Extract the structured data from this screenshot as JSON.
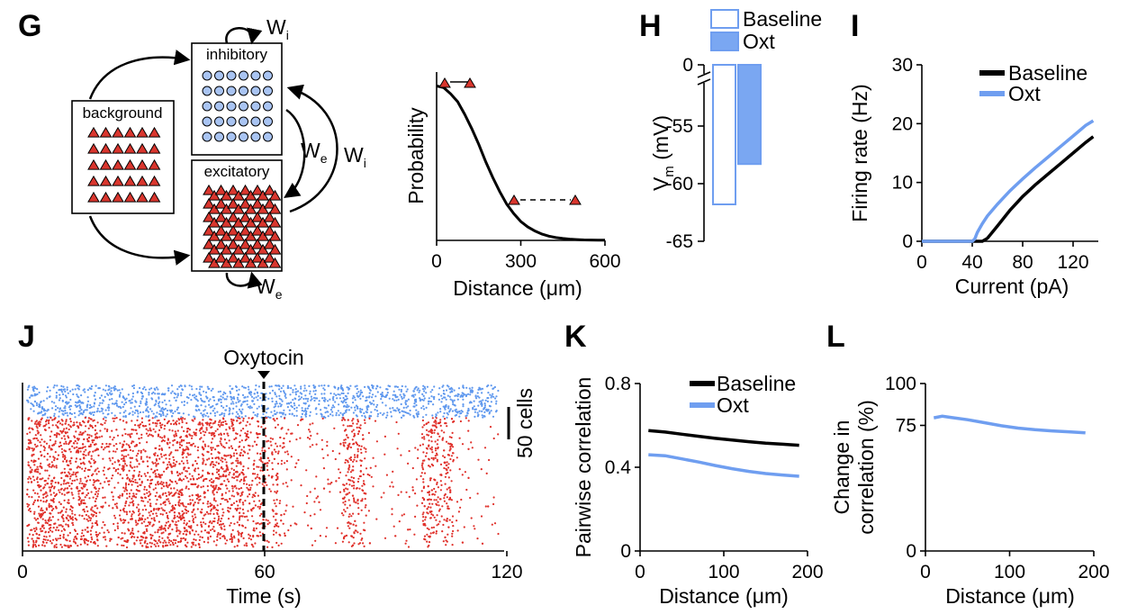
{
  "panel_labels": {
    "G": "G",
    "H": "H",
    "I": "I",
    "J": "J",
    "K": "K",
    "L": "L"
  },
  "colors": {
    "baseline": "#000000",
    "oxt": "#6f9ef0",
    "oxt_fill": "#7aa7f2",
    "inhibitory_cell": "#a9c4f2",
    "excitatory_cell": "#d9362e",
    "raster_inh": "#5f98ee",
    "raster_exc": "#e0302a"
  },
  "network": {
    "background_label": "background",
    "inhibitory_label": "inhibitory",
    "excitatory_label": "excitatory",
    "w_i": "W",
    "w_i_sub": "i",
    "w_e": "W",
    "w_e_sub": "e"
  },
  "chart_data": [
    {
      "id": "G-connectivity",
      "type": "line",
      "ylabel": "Probability",
      "xlabel": "Distance (μm)",
      "xticks": [
        "0",
        "300",
        "600"
      ],
      "xlim": [
        0,
        600
      ],
      "ylim": [
        0,
        1
      ],
      "x": [
        0,
        25,
        50,
        75,
        100,
        125,
        150,
        175,
        200,
        225,
        250,
        275,
        300,
        325,
        350,
        375,
        400,
        425,
        450,
        475,
        500,
        525,
        550,
        575,
        600
      ],
      "values": [
        0.98,
        0.97,
        0.93,
        0.88,
        0.8,
        0.71,
        0.61,
        0.5,
        0.4,
        0.31,
        0.23,
        0.17,
        0.12,
        0.085,
        0.06,
        0.04,
        0.027,
        0.018,
        0.012,
        0.008,
        0.005,
        0.003,
        0.002,
        0.001,
        0.001
      ]
    },
    {
      "id": "H-vm",
      "type": "bar",
      "ylabel": "V",
      "ylabel_sub": "m",
      "ylabel_unit": " (mV)",
      "yticks": [
        "0",
        "-55",
        "-60",
        "-65"
      ],
      "legend": [
        "Baseline",
        "Oxt"
      ],
      "series": [
        {
          "name": "Baseline",
          "values": [
            -61.8
          ]
        },
        {
          "name": "Oxt",
          "values": [
            -58.3
          ]
        }
      ]
    },
    {
      "id": "I-fi",
      "type": "line",
      "ylabel": "Firing rate (Hz)",
      "xlabel": "Current (pA)",
      "xticks": [
        "0",
        "40",
        "80",
        "120"
      ],
      "yticks": [
        "0",
        "10",
        "20",
        "30"
      ],
      "xlim": [
        0,
        140
      ],
      "ylim": [
        0,
        30
      ],
      "legend": [
        "Baseline",
        "Oxt"
      ],
      "x": [
        0,
        10,
        20,
        30,
        40,
        42,
        44,
        48,
        52,
        60,
        70,
        80,
        90,
        100,
        110,
        120,
        130,
        136
      ],
      "series": [
        {
          "name": "Baseline",
          "values": [
            0,
            0,
            0,
            0,
            0,
            0,
            0,
            0,
            0.5,
            2.6,
            5.3,
            7.6,
            9.6,
            11.4,
            13.2,
            15,
            16.8,
            17.8
          ]
        },
        {
          "name": "Oxt",
          "values": [
            0,
            0,
            0,
            0,
            0,
            0.4,
            1.5,
            3,
            4.3,
            6.3,
            8.6,
            10.6,
            12.5,
            14.3,
            16.1,
            17.9,
            19.7,
            20.5
          ]
        }
      ]
    },
    {
      "id": "J-raster",
      "type": "scatter",
      "annotation": "Oxytocin",
      "xlabel": "Time (s)",
      "xticks": [
        "0",
        "60",
        "120"
      ],
      "xlim": [
        0,
        120
      ],
      "scalebar": "50 cells",
      "event_time": 60,
      "inhibitory_rows": [
        0,
        30
      ],
      "excitatory_rows": [
        30,
        150
      ]
    },
    {
      "id": "K-corr",
      "type": "line",
      "ylabel": "Pairwise correlation",
      "xlabel": "Distance (μm)",
      "xticks": [
        "0",
        "100",
        "200"
      ],
      "yticks": [
        "0",
        "0.4",
        "0.8"
      ],
      "xlim": [
        0,
        200
      ],
      "ylim": [
        0,
        0.8
      ],
      "legend": [
        "Baseline",
        "Oxt"
      ],
      "x": [
        10,
        30,
        50,
        70,
        90,
        110,
        130,
        150,
        170,
        190
      ],
      "series": [
        {
          "name": "Baseline",
          "values": [
            0.575,
            0.568,
            0.558,
            0.548,
            0.538,
            0.53,
            0.522,
            0.515,
            0.51,
            0.505
          ]
        },
        {
          "name": "Oxt",
          "values": [
            0.46,
            0.455,
            0.44,
            0.425,
            0.408,
            0.393,
            0.38,
            0.37,
            0.363,
            0.357
          ]
        }
      ]
    },
    {
      "id": "L-change",
      "type": "line",
      "ylabel": "Change in",
      "ylabel2": "correlation (%)",
      "xlabel": "Distance (μm)",
      "xticks": [
        "0",
        "100",
        "200"
      ],
      "yticks": [
        "0",
        "75",
        "100"
      ],
      "xlim": [
        0,
        200
      ],
      "ylim": [
        0,
        100
      ],
      "x": [
        10,
        20,
        30,
        50,
        70,
        90,
        110,
        130,
        150,
        170,
        190
      ],
      "values": [
        79.5,
        80.5,
        79.8,
        78.4,
        76.6,
        74.8,
        73.4,
        72.4,
        71.7,
        71.2,
        70.6
      ]
    }
  ]
}
